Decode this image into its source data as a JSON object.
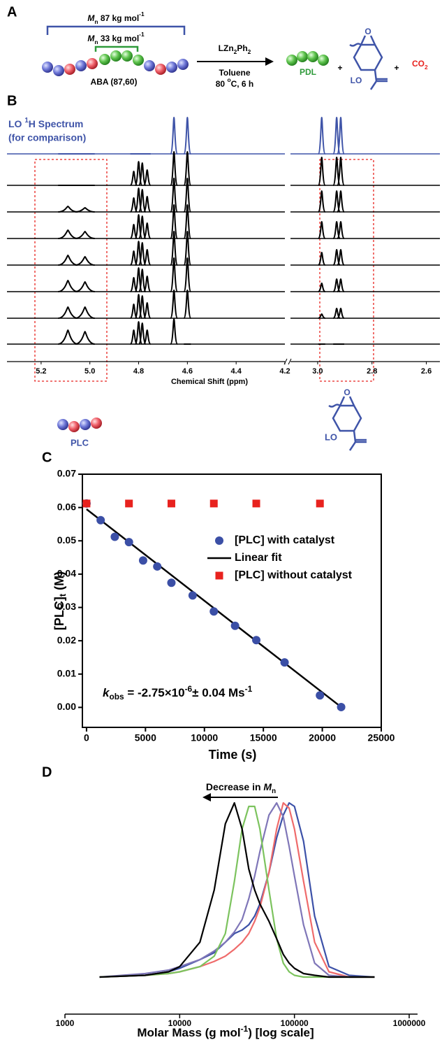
{
  "panel_labels": {
    "a": "A",
    "b": "B",
    "c": "C",
    "d": "D"
  },
  "scheme": {
    "mn_total": [
      "M",
      "n",
      " 87 kg mol",
      "-1"
    ],
    "mn_block": [
      "M",
      "n",
      " 33 kg mol",
      "-1"
    ],
    "polymer": "ABA (87,60)",
    "catalyst": [
      "LZn",
      "2",
      "Ph",
      "2"
    ],
    "solvent": "Toluene",
    "conditions": [
      "80 ",
      "o",
      "C, 6 h"
    ],
    "product_1": "PDL",
    "plus_1": "+",
    "epoxide_o": "O",
    "product_2": "LO",
    "plus_2": "+",
    "product_3": [
      "CO",
      "2"
    ]
  },
  "spectra_labels": {
    "reference": [
      "LO ",
      "1",
      "H Spectrum"
    ],
    "reference_note": "(for comparison)",
    "plc": "PLC",
    "lo_o": "O",
    "lo": "LO"
  },
  "chart_data": [
    {
      "type": "spectrum",
      "x_title": "Chemical Shift (ppm)",
      "xlim": [
        5.34,
        2.55
      ],
      "axis_break": [
        4.2,
        3.1
      ],
      "xticks": [
        5.2,
        {
          "value": 5,
          "label": "5.0"
        },
        4.8,
        4.6,
        4.4,
        4.2,
        {
          "value": 3,
          "label": "3.0"
        },
        2.8,
        2.6
      ],
      "x": [
        5.09,
        5.02,
        4.82,
        4.8,
        4.785,
        4.765,
        4.655,
        4.6,
        2.985,
        2.93,
        2.915
      ],
      "series": [
        {
          "color": "#3f54a8",
          "values": [
            0,
            0,
            0,
            0,
            0,
            0,
            1.3,
            1.3,
            1.3,
            1.3,
            1.3
          ]
        },
        {
          "color": "#000000",
          "values": [
            0,
            0,
            0.5,
            0.85,
            0.8,
            0.55,
            1.2,
            1.2,
            1.0,
            1.0,
            1.0
          ]
        },
        {
          "color": "#000000",
          "values": [
            0.2,
            0.15,
            0.5,
            0.85,
            0.8,
            0.55,
            1.2,
            1.2,
            0.75,
            0.75,
            0.75
          ]
        },
        {
          "color": "#000000",
          "values": [
            0.3,
            0.25,
            0.5,
            0.85,
            0.8,
            0.55,
            1.2,
            1.2,
            0.6,
            0.6,
            0.6
          ]
        },
        {
          "color": "#000000",
          "values": [
            0.35,
            0.3,
            0.5,
            0.85,
            0.8,
            0.55,
            1.2,
            1.2,
            0.45,
            0.55,
            0.55
          ]
        },
        {
          "color": "#000000",
          "values": [
            0.4,
            0.35,
            0.5,
            0.85,
            0.8,
            0.55,
            1.2,
            1.2,
            0.3,
            0.45,
            0.45
          ]
        },
        {
          "color": "#000000",
          "values": [
            0.4,
            0.4,
            0.5,
            0.85,
            0.8,
            0.55,
            1.0,
            1.0,
            0.15,
            0.35,
            0.35
          ]
        },
        {
          "color": "#000000",
          "values": [
            0.5,
            0.45,
            0.5,
            0.8,
            0.75,
            0.5,
            0.9,
            0,
            0,
            0,
            0
          ]
        }
      ]
    },
    {
      "type": "scatter",
      "x_title": "Time (s)",
      "y_title": [
        "[PLC]",
        "t",
        " (M)"
      ],
      "xlim": [
        -350,
        25000
      ],
      "ylim": [
        -0.006,
        0.07
      ],
      "xticks": [
        0,
        5000,
        10000,
        15000,
        20000,
        25000
      ],
      "yticks": [
        {
          "value": 0,
          "label": "0.00"
        },
        0.01,
        0.02,
        0.03,
        0.04,
        0.05,
        0.06,
        0.07
      ],
      "annotation": [
        "k",
        "obs",
        " = -2.75×10",
        "-6",
        "± 0.04 Ms",
        "-1"
      ],
      "series": [
        {
          "name": "[PLC] with catalyst",
          "color": "#3b4fa6",
          "marker": "circle",
          "x": [
            0,
            1200,
            2400,
            3600,
            4800,
            6000,
            7200,
            9000,
            10800,
            12600,
            14400,
            16800,
            19800,
            21600
          ],
          "values": [
            0.0612,
            0.0562,
            0.0512,
            0.0496,
            0.0441,
            0.0423,
            0.0374,
            0.0336,
            0.0288,
            0.0245,
            0.0202,
            0.0135,
            0.0036,
            0.0001
          ]
        },
        {
          "name": "Linear fit",
          "color": "#000000",
          "marker": "line",
          "x": [
            0,
            21600
          ],
          "values": [
            0.0595,
            0.0001
          ]
        },
        {
          "name": "[PLC] without catalyst",
          "color": "#e8221e",
          "marker": "square",
          "x": [
            0,
            3600,
            7200,
            10800,
            14400,
            19800
          ],
          "values": [
            0.0612,
            0.0612,
            0.0612,
            0.0612,
            0.0612,
            0.0612
          ]
        }
      ]
    },
    {
      "type": "line",
      "x_title": [
        "Molar Mass (g mol",
        "-1",
        ") [log scale]"
      ],
      "annotation": [
        "Decrease in ",
        "M",
        "n"
      ],
      "xlog": true,
      "xlim": [
        1000,
        1000000
      ],
      "xticks": [
        1000,
        10000,
        100000,
        1000000
      ],
      "x": [
        2000,
        5000,
        8000,
        10000,
        15000,
        20000,
        25000,
        30000,
        35000,
        40000,
        45000,
        50000,
        60000,
        70000,
        80000,
        90000,
        100000,
        120000,
        150000,
        200000,
        300000,
        500000
      ],
      "series": [
        {
          "color": "#3c51a8",
          "values": [
            0,
            0.01,
            0.03,
            0.05,
            0.1,
            0.14,
            0.2,
            0.25,
            0.27,
            0.3,
            0.35,
            0.42,
            0.6,
            0.8,
            0.93,
            1.0,
            0.98,
            0.78,
            0.35,
            0.06,
            0.01,
            0
          ]
        },
        {
          "color": "#ef6b6b",
          "values": [
            0,
            0.01,
            0.02,
            0.03,
            0.06,
            0.09,
            0.12,
            0.16,
            0.2,
            0.25,
            0.32,
            0.4,
            0.6,
            0.85,
            1.0,
            0.97,
            0.85,
            0.55,
            0.2,
            0.03,
            0,
            0
          ]
        },
        {
          "color": "#7f76b8",
          "values": [
            0,
            0.02,
            0.04,
            0.06,
            0.1,
            0.15,
            0.2,
            0.26,
            0.33,
            0.45,
            0.58,
            0.72,
            0.93,
            1.0,
            0.92,
            0.75,
            0.58,
            0.3,
            0.08,
            0.01,
            0,
            0
          ]
        },
        {
          "color": "#7cc35e",
          "values": [
            0,
            0.01,
            0.02,
            0.03,
            0.06,
            0.12,
            0.25,
            0.55,
            0.85,
            0.98,
            0.98,
            0.85,
            0.5,
            0.22,
            0.08,
            0.03,
            0.01,
            0,
            0,
            0,
            0,
            0
          ]
        },
        {
          "color": "#000000",
          "values": [
            0,
            0.01,
            0.03,
            0.06,
            0.2,
            0.5,
            0.88,
            1.0,
            0.85,
            0.62,
            0.5,
            0.42,
            0.32,
            0.22,
            0.13,
            0.08,
            0.05,
            0.02,
            0.01,
            0,
            0,
            0
          ]
        }
      ]
    }
  ]
}
